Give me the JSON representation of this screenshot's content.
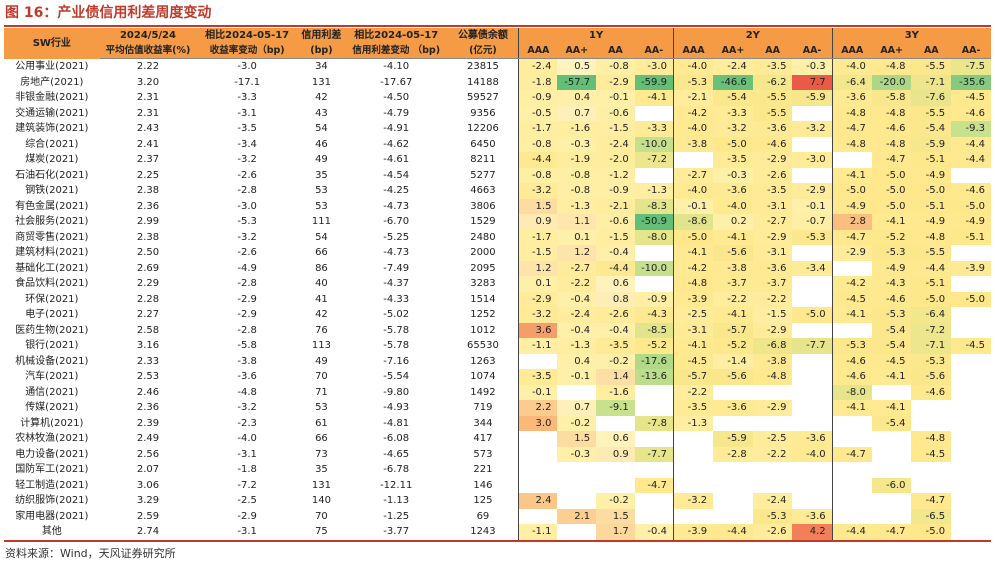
{
  "title": "图 16：产业债信用利差周度变动",
  "header": {
    "sw": "SW行业",
    "c1a": "2024/5/24",
    "c1b": "平均估值收益率(%)",
    "c2a": "相比2024-05-17",
    "c2b": "收益率变动（bp)",
    "c3a": "信用利差",
    "c3b": "(bp)",
    "c4a": "相比2024-05-17",
    "c4b": "信用利差变动 （bp)",
    "c5a": "公募债余额",
    "c5b": "(亿元)",
    "groups": [
      "1Y",
      "2Y",
      "3Y"
    ],
    "sub": [
      "AAA",
      "AA+",
      "AA",
      "AA-"
    ]
  },
  "colors": {
    "header_bg": "#f59a45",
    "title": "#c0392b",
    "rule": "#c0392b"
  },
  "rows": [
    {
      "name": "公用事业(2021)",
      "yld": "2.22",
      "ychg": "-3.0",
      "spread": "34",
      "schg": "-4.10",
      "bal": "23815",
      "y1": [
        "-2.4",
        "0.5",
        "-0.8",
        "-3.0"
      ],
      "y2": [
        "-4.0",
        "-2.4",
        "-3.5",
        "-0.3"
      ],
      "y3": [
        "-4.0",
        "-4.8",
        "-5.5",
        "-7.5"
      ]
    },
    {
      "name": "房地产(2021)",
      "yld": "3.20",
      "ychg": "-17.1",
      "spread": "131",
      "schg": "-17.67",
      "bal": "14188",
      "y1": [
        "-1.8",
        "-57.7",
        "-2.9",
        "-59.9"
      ],
      "y2": [
        "-5.3",
        "-46.6",
        "-6.2",
        "7.7"
      ],
      "y3": [
        "-6.4",
        "-20.0",
        "-7.1",
        "-35.6"
      ]
    },
    {
      "name": "非银金融(2021)",
      "yld": "2.31",
      "ychg": "-3.3",
      "spread": "42",
      "schg": "-4.50",
      "bal": "59527",
      "y1": [
        "-0.9",
        "0.4",
        "-0.1",
        "-4.1"
      ],
      "y2": [
        "-2.1",
        "-5.4",
        "-5.5",
        "-5.9"
      ],
      "y3": [
        "-3.6",
        "-5.8",
        "-7.6",
        "-4.5"
      ]
    },
    {
      "name": "交通运输(2021)",
      "yld": "2.31",
      "ychg": "-3.1",
      "spread": "43",
      "schg": "-4.79",
      "bal": "9356",
      "y1": [
        "-0.5",
        "0.7",
        "-0.6",
        ""
      ],
      "y2": [
        "-4.2",
        "-3.3",
        "-5.5",
        ""
      ],
      "y3": [
        "-4.8",
        "-4.8",
        "-5.5",
        "-4.6"
      ]
    },
    {
      "name": "建筑装饰(2021)",
      "yld": "2.43",
      "ychg": "-3.5",
      "spread": "54",
      "schg": "-4.91",
      "bal": "12206",
      "y1": [
        "-1.7",
        "-1.6",
        "-1.5",
        "-3.3"
      ],
      "y2": [
        "-4.0",
        "-3.2",
        "-3.6",
        "-3.2"
      ],
      "y3": [
        "-4.7",
        "-4.6",
        "-5.4",
        "-9.3"
      ]
    },
    {
      "name": "综合(2021)",
      "yld": "2.41",
      "ychg": "-3.4",
      "spread": "46",
      "schg": "-4.62",
      "bal": "6450",
      "y1": [
        "-0.8",
        "-0.3",
        "-2.4",
        "-10.0"
      ],
      "y2": [
        "-3.8",
        "-5.0",
        "-4.6",
        ""
      ],
      "y3": [
        "-4.8",
        "-4.8",
        "-5.9",
        "-4.4"
      ]
    },
    {
      "name": "煤炭(2021)",
      "yld": "2.37",
      "ychg": "-3.2",
      "spread": "49",
      "schg": "-4.61",
      "bal": "8211",
      "y1": [
        "-4.4",
        "-1.9",
        "-2.0",
        "-7.2"
      ],
      "y2": [
        "",
        "-3.5",
        "-2.9",
        "-3.0"
      ],
      "y3": [
        "",
        "-4.7",
        "-5.1",
        "-4.4"
      ]
    },
    {
      "name": "石油石化(2021)",
      "yld": "2.25",
      "ychg": "-2.6",
      "spread": "35",
      "schg": "-4.54",
      "bal": "5277",
      "y1": [
        "-0.8",
        "-0.8",
        "-1.2",
        ""
      ],
      "y2": [
        "-2.7",
        "-0.3",
        "-2.6",
        ""
      ],
      "y3": [
        "-4.1",
        "-5.0",
        "-4.9",
        ""
      ]
    },
    {
      "name": "钢铁(2021)",
      "yld": "2.38",
      "ychg": "-2.8",
      "spread": "53",
      "schg": "-4.25",
      "bal": "4663",
      "y1": [
        "-3.2",
        "-0.8",
        "-0.9",
        "-1.3"
      ],
      "y2": [
        "-4.0",
        "-3.6",
        "-3.5",
        "-2.9"
      ],
      "y3": [
        "-5.0",
        "-5.0",
        "-5.0",
        "-4.6"
      ]
    },
    {
      "name": "有色金属(2021)",
      "yld": "2.36",
      "ychg": "-3.0",
      "spread": "53",
      "schg": "-4.73",
      "bal": "3806",
      "y1": [
        "1.5",
        "-1.3",
        "-2.1",
        "-8.3"
      ],
      "y2": [
        "-0.1",
        "-4.0",
        "-3.1",
        "-0.1"
      ],
      "y3": [
        "-4.9",
        "-5.0",
        "-5.1",
        "-5.0"
      ]
    },
    {
      "name": "社会服务(2021)",
      "yld": "2.99",
      "ychg": "-5.3",
      "spread": "111",
      "schg": "-6.70",
      "bal": "1529",
      "y1": [
        "0.9",
        "1.1",
        "-0.6",
        "-50.9"
      ],
      "y2": [
        "-8.6",
        "0.2",
        "-2.7",
        "-0.7"
      ],
      "y3": [
        "2.8",
        "-4.1",
        "-4.9",
        "-4.9"
      ]
    },
    {
      "name": "商贸零售(2021)",
      "yld": "2.38",
      "ychg": "-3.2",
      "spread": "54",
      "schg": "-5.25",
      "bal": "2480",
      "y1": [
        "-1.7",
        "0.1",
        "-1.5",
        "-8.0"
      ],
      "y2": [
        "-5.0",
        "-4.1",
        "-2.9",
        "-5.3"
      ],
      "y3": [
        "-4.7",
        "-5.2",
        "-4.8",
        "-5.1"
      ]
    },
    {
      "name": "建筑材料(2021)",
      "yld": "2.50",
      "ychg": "-2.6",
      "spread": "66",
      "schg": "-4.73",
      "bal": "2000",
      "y1": [
        "-1.5",
        "1.2",
        "-0.4",
        ""
      ],
      "y2": [
        "-4.1",
        "-5.6",
        "-3.1",
        ""
      ],
      "y3": [
        "-2.9",
        "-5.3",
        "-5.5",
        ""
      ]
    },
    {
      "name": "基础化工(2021)",
      "yld": "2.69",
      "ychg": "-4.9",
      "spread": "86",
      "schg": "-7.49",
      "bal": "2095",
      "y1": [
        "1.2",
        "-2.7",
        "-4.4",
        "-10.0"
      ],
      "y2": [
        "-4.2",
        "-3.8",
        "-3.6",
        "-3.4"
      ],
      "y3": [
        "",
        "-4.9",
        "-4.4",
        "-3.9"
      ]
    },
    {
      "name": "食品饮料(2021)",
      "yld": "2.29",
      "ychg": "-2.8",
      "spread": "40",
      "schg": "-4.37",
      "bal": "3283",
      "y1": [
        "0.1",
        "-2.2",
        "0.6",
        ""
      ],
      "y2": [
        "-4.8",
        "-3.7",
        "-3.7",
        ""
      ],
      "y3": [
        "-4.2",
        "-4.3",
        "-5.1",
        ""
      ]
    },
    {
      "name": "环保(2021)",
      "yld": "2.28",
      "ychg": "-2.9",
      "spread": "41",
      "schg": "-4.33",
      "bal": "1514",
      "y1": [
        "-2.9",
        "-0.4",
        "0.8",
        "-0.9"
      ],
      "y2": [
        "-3.9",
        "-2.2",
        "-2.2",
        ""
      ],
      "y3": [
        "-4.5",
        "-4.6",
        "-5.0",
        "-5.0"
      ]
    },
    {
      "name": "电子(2021)",
      "yld": "2.27",
      "ychg": "-2.9",
      "spread": "42",
      "schg": "-5.02",
      "bal": "1252",
      "y1": [
        "-3.2",
        "-2.4",
        "-2.6",
        "-4.3"
      ],
      "y2": [
        "-2.5",
        "-4.1",
        "-1.5",
        "-5.0"
      ],
      "y3": [
        "-4.1",
        "-5.3",
        "-6.4",
        ""
      ]
    },
    {
      "name": "医药生物(2021)",
      "yld": "2.58",
      "ychg": "-2.8",
      "spread": "76",
      "schg": "-5.78",
      "bal": "1012",
      "y1": [
        "3.6",
        "-0.4",
        "-0.4",
        "-8.5"
      ],
      "y2": [
        "-3.1",
        "-5.7",
        "-2.9",
        ""
      ],
      "y3": [
        "",
        "-5.4",
        "-7.2",
        ""
      ]
    },
    {
      "name": "银行(2021)",
      "yld": "3.16",
      "ychg": "-5.8",
      "spread": "113",
      "schg": "-5.78",
      "bal": "65530",
      "y1": [
        "-1.1",
        "-1.3",
        "-3.5",
        "-5.2"
      ],
      "y2": [
        "-4.1",
        "-5.2",
        "-6.8",
        "-7.7"
      ],
      "y3": [
        "-5.3",
        "-5.4",
        "-7.1",
        "-4.5"
      ]
    },
    {
      "name": "机械设备(2021)",
      "yld": "2.33",
      "ychg": "-3.8",
      "spread": "49",
      "schg": "-7.16",
      "bal": "1263",
      "y1": [
        "",
        "0.4",
        "-0.2",
        "-17.6"
      ],
      "y2": [
        "-4.5",
        "-1.4",
        "-3.8",
        ""
      ],
      "y3": [
        "-4.6",
        "-4.5",
        "-5.3",
        ""
      ]
    },
    {
      "name": "汽车(2021)",
      "yld": "2.53",
      "ychg": "-3.6",
      "spread": "70",
      "schg": "-5.54",
      "bal": "1074",
      "y1": [
        "-3.5",
        "-0.1",
        "1.4",
        "-13.6"
      ],
      "y2": [
        "-5.7",
        "-5.6",
        "-4.8",
        ""
      ],
      "y3": [
        "-4.6",
        "-4.1",
        "-5.6",
        ""
      ]
    },
    {
      "name": "通信(2021)",
      "yld": "2.46",
      "ychg": "-4.8",
      "spread": "71",
      "schg": "-9.80",
      "bal": "1492",
      "y1": [
        "-0.1",
        "",
        "-1.6",
        ""
      ],
      "y2": [
        "-2.2",
        "",
        "",
        ""
      ],
      "y3": [
        "-8.0",
        "",
        "-4.6",
        ""
      ]
    },
    {
      "name": "传媒(2021)",
      "yld": "2.36",
      "ychg": "-3.2",
      "spread": "53",
      "schg": "-4.93",
      "bal": "719",
      "y1": [
        "2.2",
        "0.7",
        "-9.1",
        ""
      ],
      "y2": [
        "-3.5",
        "-3.6",
        "-2.9",
        ""
      ],
      "y3": [
        "-4.1",
        "-4.1",
        "",
        ""
      ]
    },
    {
      "name": "计算机(2021)",
      "yld": "2.39",
      "ychg": "-2.3",
      "spread": "61",
      "schg": "-4.81",
      "bal": "344",
      "y1": [
        "3.0",
        "-0.2",
        "",
        "-7.8"
      ],
      "y2": [
        "-1.3",
        "",
        "",
        ""
      ],
      "y3": [
        "",
        "-5.4",
        "",
        ""
      ]
    },
    {
      "name": "农林牧渔(2021)",
      "yld": "2.49",
      "ychg": "-4.0",
      "spread": "66",
      "schg": "-6.08",
      "bal": "417",
      "y1": [
        "",
        "1.5",
        "0.6",
        ""
      ],
      "y2": [
        "",
        "-5.9",
        "-2.5",
        "-3.6"
      ],
      "y3": [
        "",
        "",
        "-4.8",
        ""
      ]
    },
    {
      "name": "电力设备(2021)",
      "yld": "2.56",
      "ychg": "-3.1",
      "spread": "73",
      "schg": "-4.65",
      "bal": "573",
      "y1": [
        "",
        "-0.3",
        "0.9",
        "-7.7"
      ],
      "y2": [
        "",
        "-2.8",
        "-2.2",
        "-4.0"
      ],
      "y3": [
        "-4.7",
        "",
        "-4.5",
        ""
      ]
    },
    {
      "name": "国防军工(2021)",
      "yld": "2.07",
      "ychg": "-1.8",
      "spread": "35",
      "schg": "-6.78",
      "bal": "221",
      "y1": [
        "",
        "",
        "",
        ""
      ],
      "y2": [
        "",
        "",
        "",
        ""
      ],
      "y3": [
        "",
        "",
        "",
        ""
      ]
    },
    {
      "name": "轻工制造(2021)",
      "yld": "3.06",
      "ychg": "-7.2",
      "spread": "131",
      "schg": "-12.11",
      "bal": "146",
      "y1": [
        "",
        "",
        "",
        "-4.7"
      ],
      "y2": [
        "",
        "",
        "",
        ""
      ],
      "y3": [
        "",
        "-6.0",
        "",
        ""
      ]
    },
    {
      "name": "纺织服饰(2021)",
      "yld": "3.29",
      "ychg": "-2.5",
      "spread": "140",
      "schg": "-1.13",
      "bal": "125",
      "y1": [
        "2.4",
        "",
        "-0.2",
        ""
      ],
      "y2": [
        "-3.2",
        "",
        "-2.4",
        ""
      ],
      "y3": [
        "",
        "",
        "-4.7",
        ""
      ]
    },
    {
      "name": "家用电器(2021)",
      "yld": "2.59",
      "ychg": "-2.9",
      "spread": "70",
      "schg": "-1.25",
      "bal": "69",
      "y1": [
        "",
        "2.1",
        "1.5",
        ""
      ],
      "y2": [
        "",
        "",
        "-5.3",
        "-3.6"
      ],
      "y3": [
        "",
        "",
        "-6.5",
        ""
      ]
    },
    {
      "name": "其他",
      "yld": "2.74",
      "ychg": "-3.1",
      "spread": "75",
      "schg": "-3.77",
      "bal": "1243",
      "y1": [
        "-1.1",
        "",
        "1.7",
        "-0.4"
      ],
      "y2": [
        "-3.9",
        "-4.4",
        "-2.6",
        "4.2"
      ],
      "y3": [
        "-4.4",
        "-4.7",
        "-5.0",
        ""
      ]
    }
  ],
  "source": "资料来源：Wind，天风证券研究所"
}
